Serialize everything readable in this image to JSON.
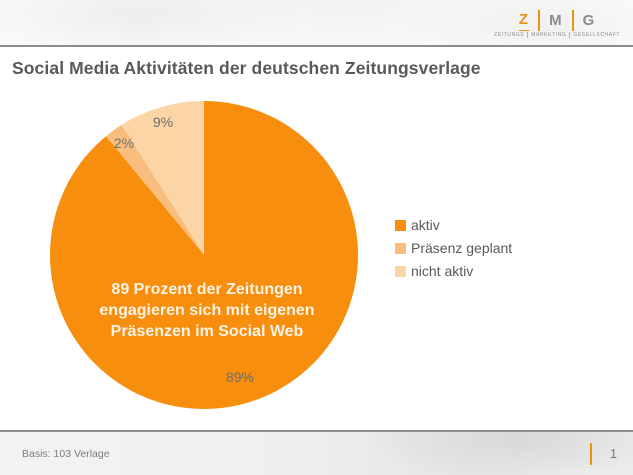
{
  "header": {
    "logo": {
      "letters": [
        "Z",
        "M",
        "G"
      ],
      "caption": [
        "ZEITUNGS",
        "MARKETING",
        "GESELLSCHAFT"
      ],
      "accent_color": "#E8940F"
    },
    "title": "Social Media Aktivitäten der deutschen Zeitungsverlage"
  },
  "chart_data": {
    "type": "pie",
    "title": "Social Media Aktivitäten der deutschen Zeitungsverlage",
    "start_angle_deg": 0,
    "direction": "clockwise",
    "slices": [
      {
        "label": "aktiv",
        "value": 89,
        "percent_label": "89%",
        "color": "#F78E0E"
      },
      {
        "label": "Präsenz geplant",
        "value": 2,
        "percent_label": "2%",
        "color": "#F9BE7D"
      },
      {
        "label": "nicht aktiv",
        "value": 9,
        "percent_label": "9%",
        "color": "#FCD5A6"
      }
    ],
    "center_label": [
      "89 Prozent der Zeitungen",
      "engagieren sich mit eigenen",
      "Präsenzen im Social Web"
    ],
    "legend": {
      "position": "right"
    }
  },
  "footer": {
    "basis": "Basis: 103 Verlage",
    "page_number": "1"
  }
}
